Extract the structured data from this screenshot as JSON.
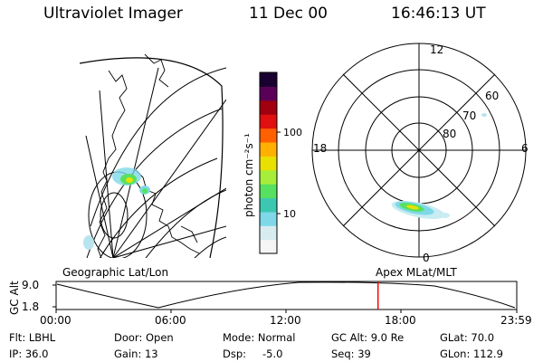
{
  "header": {
    "instrument": "Ultraviolet Imager",
    "date": "11 Dec 00",
    "time": "16:46:13 UT"
  },
  "colorbar": {
    "label": "photon cm⁻²s⁻¹",
    "ticks": [
      "100",
      "10"
    ],
    "colors": [
      "#f5f5f5",
      "#d8ecf0",
      "#7fd8e8",
      "#3cc8b0",
      "#58e060",
      "#a6ee3a",
      "#e8e000",
      "#ffb000",
      "#ff6000",
      "#e01010",
      "#a00010",
      "#5a0058",
      "#1a0030"
    ]
  },
  "polar_plot": {
    "lat_labels": [
      "60",
      "70",
      "80"
    ],
    "mlt_labels": {
      "top": "12",
      "left": "18",
      "right": "6",
      "bottom": "0"
    }
  },
  "panel_labels": {
    "left": "Geographic Lat/Lon",
    "right": "Apex MLat/MLT"
  },
  "timeline": {
    "axis_label": "GC Alt",
    "y_ticks": [
      "9.0",
      "1.8"
    ],
    "x_ticks": [
      "00:00",
      "06:00",
      "12:00",
      "18:00",
      "23:59"
    ],
    "current_time_fraction": 0.6988,
    "marker_color": "#ff0000"
  },
  "info": {
    "flt": "Flt: LBHL",
    "ip": "IP: 36.0",
    "door": "Door: Open",
    "gain": "Gain: 13",
    "mode": "Mode: Normal",
    "dsp_label": "Dsp:",
    "dsp_value": "-5.0",
    "gc_alt": "GC Alt: 9.0 Re",
    "seq": "Seq: 39",
    "glat": "GLat: 70.0",
    "glon": "GLon: 112.9"
  }
}
